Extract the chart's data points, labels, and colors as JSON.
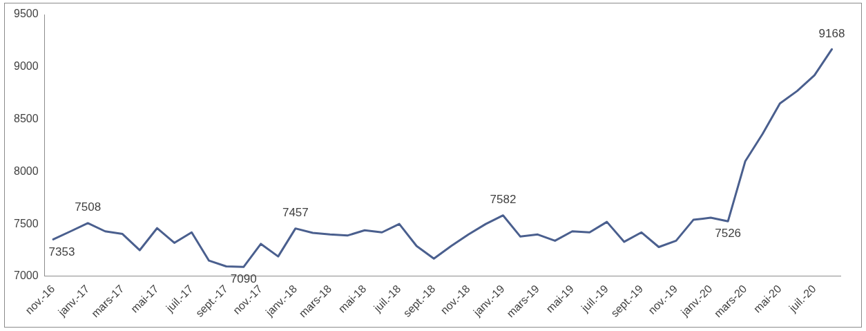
{
  "chart_data": {
    "type": "line",
    "categories": [
      "nov.-16",
      null,
      "janv.-17",
      null,
      "mars-17",
      null,
      "mai-17",
      null,
      "juil.-17",
      null,
      "sept.-17",
      null,
      "nov.-17",
      null,
      "janv.-18",
      null,
      "mars-18",
      null,
      "mai-18",
      null,
      "juil.-18",
      null,
      "sept.-18",
      null,
      "nov.-18",
      null,
      "janv.-19",
      null,
      "mars-19",
      null,
      "mai-19",
      null,
      "juil.-19",
      null,
      "sept.-19",
      null,
      "nov.-19",
      null,
      "janv.-20",
      null,
      "mars-20",
      null,
      "mai-20",
      null,
      "juil.-20",
      null
    ],
    "series": [
      {
        "color": "#4a5f8e",
        "values": [
          7353,
          7430,
          7508,
          7430,
          7405,
          7250,
          7460,
          7320,
          7420,
          7150,
          7095,
          7090,
          7310,
          7190,
          7457,
          7415,
          7400,
          7390,
          7440,
          7420,
          7500,
          7290,
          7170,
          7290,
          7400,
          7500,
          7582,
          7380,
          7400,
          7340,
          7430,
          7420,
          7520,
          7330,
          7420,
          7280,
          7340,
          7540,
          7560,
          7526,
          8100,
          8360,
          8650,
          8770,
          8920,
          9168
        ],
        "value_labels": [
          "7353",
          null,
          "7508",
          null,
          null,
          null,
          null,
          null,
          null,
          null,
          null,
          "7090",
          null,
          null,
          "7457",
          null,
          null,
          null,
          null,
          null,
          null,
          null,
          null,
          null,
          null,
          null,
          "7582",
          null,
          null,
          null,
          null,
          null,
          null,
          null,
          null,
          null,
          null,
          null,
          null,
          "7526",
          null,
          null,
          null,
          null,
          null,
          "9168"
        ]
      }
    ],
    "ylim": [
      7000,
      9500
    ],
    "yticks": [
      7000,
      7500,
      8000,
      8500,
      9000,
      9500
    ],
    "grid": false,
    "legend": false,
    "marker": "none",
    "line_style": "solid"
  }
}
